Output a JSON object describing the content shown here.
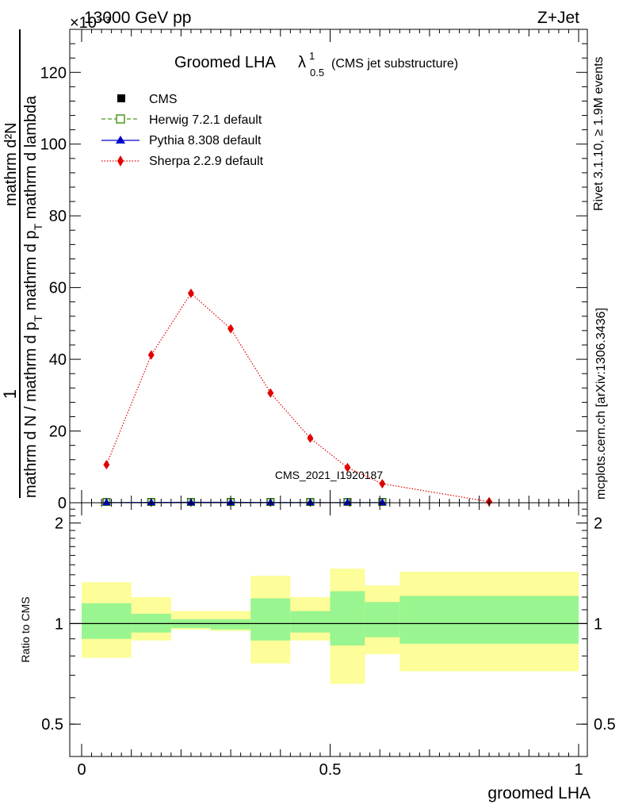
{
  "header": {
    "energy_label": "13000 GeV pp",
    "process_label": "Z+Jet",
    "exponent_label": "×10⁻³"
  },
  "title": {
    "main": "Groomed LHA",
    "lambda": "λ",
    "sup": "1",
    "sub": "0.5",
    "suffix": "(CMS jet substructure)"
  },
  "side_labels": {
    "rivet": "Rivet 3.1.10, ≥ 1.9M events",
    "mcplots": "mcplots.cern.ch [arXiv:1306.3436]"
  },
  "watermark": "CMS_2021_I1920187",
  "y_label": {
    "frac_num": "1",
    "frac_den": "mathrm d N / mathrm d p",
    "frac_den_sub": "T",
    "deriv_num": "mathrm d²N",
    "deriv_den": "mathrm d p",
    "deriv_den_sub": "T",
    "deriv_den_tail": " mathrm d lambda"
  },
  "ratio_ylabel": "Ratio to CMS",
  "x_label": "groomed LHA",
  "legend": [
    {
      "name": "CMS",
      "color": "#000000",
      "marker": "square"
    },
    {
      "name": "Herwig 7.2.1 default",
      "color": "#4a9a1a",
      "marker": "open-square"
    },
    {
      "name": "Pythia 8.308 default",
      "color": "#0000cc",
      "marker": "triangle"
    },
    {
      "name": "Sherpa 2.2.9 default",
      "color": "#e00000",
      "marker": "diamond"
    }
  ],
  "chart_data": {
    "type": "line",
    "title": "Groomed LHA λ¹₀.₅ (CMS jet substructure)",
    "xlabel": "groomed LHA",
    "ylabel": "1 / (dN/dpT) · d²N / dpT dλ",
    "y_multiplier": "×10⁻³",
    "xlim": [
      0,
      1
    ],
    "ylim": [
      0,
      132
    ],
    "x_ticks": [
      0,
      0.5,
      1
    ],
    "x_tick_labels": [
      "0",
      "0.5",
      "1"
    ],
    "y_ticks": [
      0,
      20,
      40,
      60,
      80,
      100,
      120
    ],
    "y_tick_labels": [
      "0",
      "20",
      "40",
      "60",
      "80",
      "100",
      "120"
    ],
    "bin_edges": [
      0,
      0.1,
      0.18,
      0.26,
      0.34,
      0.42,
      0.5,
      0.57,
      0.64,
      1.0
    ],
    "series": [
      {
        "name": "CMS",
        "x": [
          0.05,
          0.14,
          0.22,
          0.3,
          0.38,
          0.46,
          0.535,
          0.605
        ],
        "values": [
          0.05,
          0.08,
          0.1,
          0.1,
          0.06,
          0.04,
          0.03,
          0.02
        ]
      },
      {
        "name": "Herwig 7.2.1 default",
        "x": [
          0.05,
          0.14,
          0.22,
          0.3,
          0.38,
          0.46,
          0.535,
          0.605
        ],
        "values": [
          0.05,
          0.08,
          0.1,
          0.1,
          0.06,
          0.04,
          0.03,
          0.02
        ]
      },
      {
        "name": "Pythia 8.308 default",
        "x": [
          0.05,
          0.14,
          0.22,
          0.3,
          0.38,
          0.46,
          0.535,
          0.605
        ],
        "values": [
          0.05,
          0.08,
          0.1,
          0.1,
          0.06,
          0.04,
          0.03,
          0.02
        ]
      },
      {
        "name": "Sherpa 2.2.9 default",
        "x": [
          0.05,
          0.14,
          0.22,
          0.3,
          0.38,
          0.46,
          0.535,
          0.605,
          0.82
        ],
        "values": [
          10.6,
          41.2,
          58.4,
          48.5,
          30.6,
          18.0,
          9.8,
          5.3,
          0.3
        ]
      }
    ],
    "ratio": {
      "ylabel": "Ratio to CMS",
      "scale": "log",
      "ylim": [
        0.4,
        2.3
      ],
      "y_ticks": [
        0.5,
        1,
        2
      ],
      "y_tick_labels": [
        "0.5",
        "1",
        "2"
      ],
      "bands": [
        {
          "x_range": [
            0.0,
            0.1
          ],
          "inner": [
            0.9,
            1.15
          ],
          "outer": [
            0.79,
            1.33
          ]
        },
        {
          "x_range": [
            0.1,
            0.18
          ],
          "inner": [
            0.94,
            1.07
          ],
          "outer": [
            0.89,
            1.2
          ]
        },
        {
          "x_range": [
            0.18,
            0.26
          ],
          "inner": [
            0.97,
            1.03
          ],
          "outer": [
            0.96,
            1.09
          ]
        },
        {
          "x_range": [
            0.26,
            0.34
          ],
          "inner": [
            0.96,
            1.03
          ],
          "outer": [
            0.95,
            1.09
          ]
        },
        {
          "x_range": [
            0.34,
            0.42
          ],
          "inner": [
            0.89,
            1.19
          ],
          "outer": [
            0.76,
            1.39
          ]
        },
        {
          "x_range": [
            0.42,
            0.5
          ],
          "inner": [
            0.94,
            1.09
          ],
          "outer": [
            0.89,
            1.2
          ]
        },
        {
          "x_range": [
            0.5,
            0.57
          ],
          "inner": [
            0.86,
            1.25
          ],
          "outer": [
            0.66,
            1.46
          ]
        },
        {
          "x_range": [
            0.57,
            0.64
          ],
          "inner": [
            0.91,
            1.16
          ],
          "outer": [
            0.81,
            1.3
          ]
        },
        {
          "x_range": [
            0.64,
            1.0
          ],
          "inner": [
            0.87,
            1.21
          ],
          "outer": [
            0.72,
            1.43
          ]
        }
      ],
      "reference_line": 1
    }
  },
  "colors": {
    "band_inner": "#99f58f",
    "band_outer": "#fdfd99",
    "sherpa": "#e00000",
    "herwig": "#4a9a1a",
    "pythia": "#0000cc",
    "cms": "#000000",
    "side_text": "#777777",
    "watermark": "#aaaaaa"
  }
}
